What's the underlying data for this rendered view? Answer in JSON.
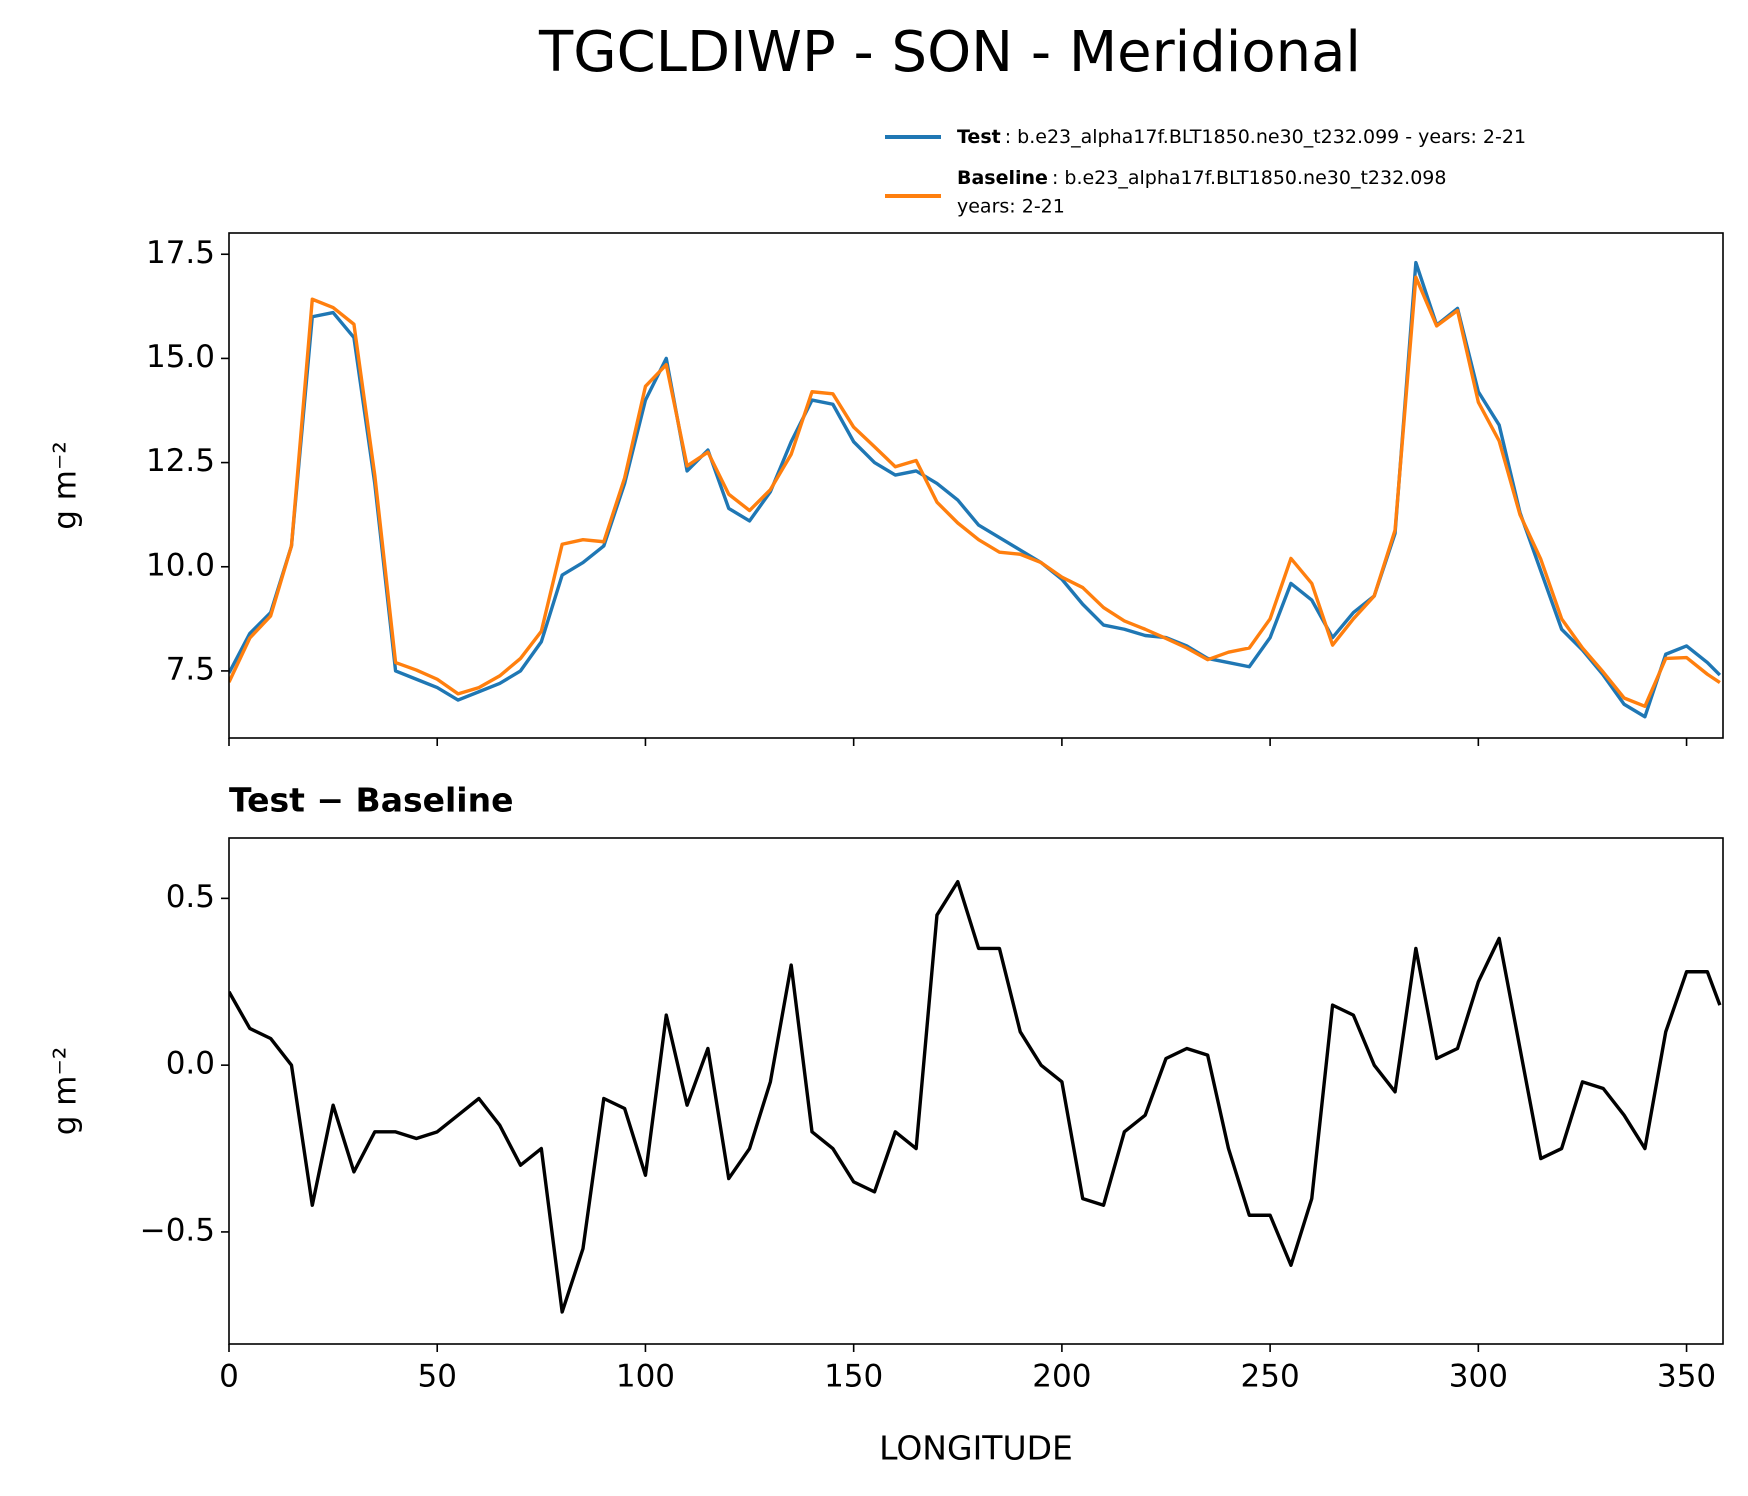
{
  "title": "TGCLDIWP - SON - Meridional",
  "chart_data": [
    {
      "type": "line",
      "ylabel": "g m⁻²",
      "x": [
        0,
        5,
        10,
        15,
        20,
        25,
        30,
        35,
        40,
        45,
        50,
        55,
        60,
        65,
        70,
        75,
        80,
        85,
        90,
        95,
        100,
        105,
        110,
        115,
        120,
        125,
        130,
        135,
        140,
        145,
        150,
        155,
        160,
        165,
        170,
        175,
        180,
        185,
        190,
        195,
        200,
        205,
        210,
        215,
        220,
        225,
        230,
        235,
        240,
        245,
        250,
        255,
        260,
        265,
        270,
        275,
        280,
        285,
        290,
        295,
        300,
        305,
        310,
        315,
        320,
        325,
        330,
        335,
        340,
        345,
        350,
        355,
        358
      ],
      "series": [
        {
          "name": "Test",
          "description": [
            ": b.e23_alpha17f.BLT1850.ne30_t232.099 - years: 2-21"
          ],
          "color": "#1f77b4",
          "values": [
            7.45,
            8.4,
            8.9,
            10.5,
            16.0,
            16.1,
            15.5,
            12.0,
            7.5,
            7.3,
            7.1,
            6.8,
            7.0,
            7.2,
            7.5,
            8.2,
            9.8,
            10.1,
            10.5,
            12.0,
            14.0,
            15.0,
            12.3,
            12.8,
            11.4,
            11.1,
            11.8,
            13.0,
            14.0,
            13.9,
            13.0,
            12.5,
            12.2,
            12.3,
            12.0,
            11.6,
            11.0,
            10.7,
            10.4,
            10.1,
            9.7,
            9.1,
            8.6,
            8.5,
            8.35,
            8.3,
            8.1,
            7.8,
            7.7,
            7.6,
            8.3,
            9.6,
            9.2,
            8.3,
            8.9,
            9.3,
            10.8,
            17.3,
            15.8,
            16.2,
            14.2,
            13.4,
            11.3,
            9.9,
            8.5,
            8.0,
            7.4,
            6.7,
            6.4,
            7.9,
            8.1,
            7.7,
            7.4
          ]
        },
        {
          "name": "Baseline",
          "description": [
            ": b.e23_alpha17f.BLT1850.ne30_t232.098",
            "years: 2-21"
          ],
          "color": "#ff7f0e",
          "values": [
            7.23,
            8.29,
            8.82,
            10.5,
            16.42,
            16.22,
            15.82,
            12.2,
            7.7,
            7.52,
            7.3,
            6.95,
            7.1,
            7.38,
            7.8,
            8.45,
            10.54,
            10.65,
            10.6,
            12.13,
            14.33,
            14.85,
            12.42,
            12.75,
            11.74,
            11.35,
            11.85,
            12.7,
            14.2,
            14.15,
            13.35,
            12.88,
            12.4,
            12.55,
            11.55,
            11.05,
            10.65,
            10.35,
            10.3,
            10.1,
            9.75,
            9.5,
            9.02,
            8.7,
            8.5,
            8.28,
            8.05,
            7.77,
            7.95,
            8.05,
            8.75,
            10.2,
            9.6,
            8.12,
            8.75,
            9.3,
            10.88,
            16.95,
            15.78,
            16.15,
            13.95,
            13.02,
            11.25,
            10.18,
            8.75,
            8.05,
            7.47,
            6.85,
            6.65,
            7.8,
            7.82,
            7.42,
            7.22
          ]
        }
      ],
      "xlim": [
        0,
        358.75
      ],
      "ylim": [
        5.89,
        18.01
      ],
      "xticks": [
        0,
        50,
        100,
        150,
        200,
        250,
        300,
        350
      ],
      "yticks": [
        7.5,
        {
          "value": 10,
          "label": "10.0"
        },
        12.5,
        {
          "value": 15,
          "label": "15.0"
        },
        17.5
      ],
      "show_xtick_labels": false
    },
    {
      "type": "line",
      "title": "Test − Baseline",
      "ylabel": "g m⁻²",
      "xlabel": "LONGITUDE",
      "color": "#000000",
      "x": [
        0,
        5,
        10,
        15,
        20,
        25,
        30,
        35,
        40,
        45,
        50,
        55,
        60,
        65,
        70,
        75,
        80,
        85,
        90,
        95,
        100,
        105,
        110,
        115,
        120,
        125,
        130,
        135,
        140,
        145,
        150,
        155,
        160,
        165,
        170,
        175,
        180,
        185,
        190,
        195,
        200,
        205,
        210,
        215,
        220,
        225,
        230,
        235,
        240,
        245,
        250,
        255,
        260,
        265,
        270,
        275,
        280,
        285,
        290,
        295,
        300,
        305,
        310,
        315,
        320,
        325,
        330,
        335,
        340,
        345,
        350,
        355,
        358
      ],
      "values": [
        0.22,
        0.11,
        0.08,
        0.0,
        -0.42,
        -0.12,
        -0.32,
        -0.2,
        -0.2,
        -0.22,
        -0.2,
        -0.15,
        -0.1,
        -0.18,
        -0.3,
        -0.25,
        -0.74,
        -0.55,
        -0.1,
        -0.13,
        -0.33,
        0.15,
        -0.12,
        0.05,
        -0.34,
        -0.25,
        -0.05,
        0.3,
        -0.2,
        -0.25,
        -0.35,
        -0.38,
        -0.2,
        -0.25,
        0.45,
        0.55,
        0.35,
        0.35,
        0.1,
        0.0,
        -0.05,
        -0.4,
        -0.42,
        -0.2,
        -0.15,
        0.02,
        0.05,
        0.03,
        -0.25,
        -0.45,
        -0.45,
        -0.6,
        -0.4,
        0.18,
        0.15,
        0.0,
        -0.08,
        0.35,
        0.02,
        0.05,
        0.25,
        0.38,
        0.05,
        -0.28,
        -0.25,
        -0.05,
        -0.07,
        -0.15,
        -0.25,
        0.1,
        0.28,
        0.28,
        0.18
      ],
      "xlim": [
        0,
        358.75
      ],
      "ylim": [
        -0.836,
        0.681
      ],
      "xticks": [
        0,
        50,
        100,
        150,
        200,
        250,
        300,
        350
      ],
      "yticks": [
        {
          "value": -0.5,
          "label": "−0.5"
        },
        {
          "value": 0,
          "label": "0.0"
        },
        0.5
      ],
      "show_xtick_labels": true
    }
  ]
}
